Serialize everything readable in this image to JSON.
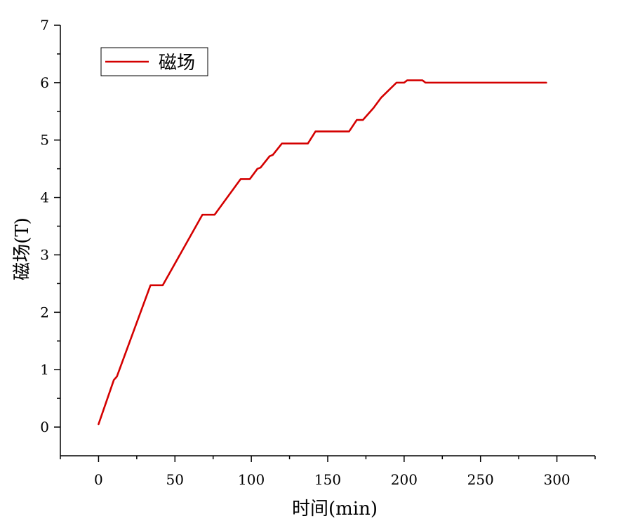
{
  "chart_data": {
    "type": "line",
    "title": "",
    "xlabel": "时间(min)",
    "ylabel": "磁场(T)",
    "xlim": [
      -25,
      325
    ],
    "ylim": [
      -0.5,
      7
    ],
    "x_ticks": [
      "0",
      "50",
      "100",
      "150",
      "200",
      "250",
      "300"
    ],
    "y_ticks": [
      "0",
      "1",
      "2",
      "3",
      "4",
      "5",
      "6",
      "7"
    ],
    "grid": false,
    "legend": "top-left",
    "colors": {
      "series": "#d40000",
      "axis": "#000000"
    },
    "series": [
      {
        "name": "磁场",
        "x": [
          0,
          10,
          12,
          34,
          42,
          68,
          76,
          93,
          99,
          104,
          106,
          112,
          114,
          120,
          137,
          142,
          164,
          169,
          173,
          180,
          185,
          195,
          200,
          202,
          212,
          214,
          293
        ],
        "y": [
          0.05,
          0.82,
          0.88,
          2.47,
          2.47,
          3.7,
          3.7,
          4.32,
          4.32,
          4.5,
          4.52,
          4.72,
          4.74,
          4.94,
          4.94,
          5.15,
          5.15,
          5.35,
          5.35,
          5.56,
          5.74,
          6.0,
          6.0,
          6.04,
          6.04,
          6.0,
          6.0
        ]
      }
    ]
  }
}
